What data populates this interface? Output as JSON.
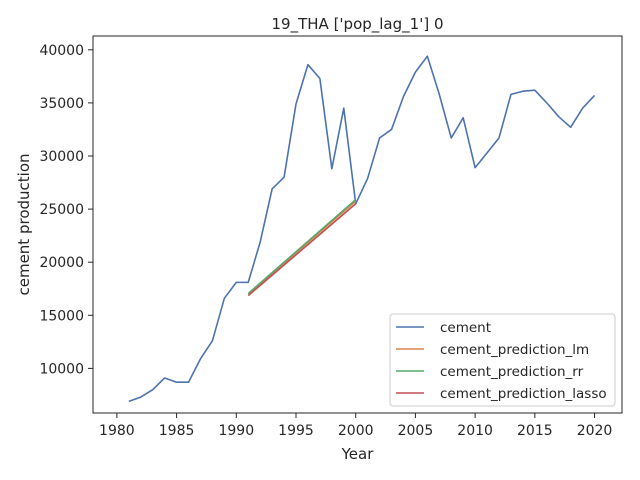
{
  "chart_data": {
    "type": "line",
    "title": "19_THA ['pop_lag_1'] 0",
    "xlabel": "Year",
    "ylabel": "cement production",
    "xlim": [
      1978,
      2022.3
    ],
    "ylim": [
      5800,
      41300
    ],
    "xticks": [
      1980,
      1985,
      1990,
      1995,
      2000,
      2005,
      2010,
      2015,
      2020
    ],
    "yticks": [
      10000,
      15000,
      20000,
      25000,
      30000,
      35000,
      40000
    ],
    "grid": false,
    "legend_position": "lower-right",
    "series": [
      {
        "name": "cement",
        "color": "#4c72b0",
        "x": [
          1981,
          1982,
          1983,
          1984,
          1985,
          1986,
          1987,
          1988,
          1989,
          1990,
          1991,
          1992,
          1993,
          1994,
          1995,
          1996,
          1997,
          1998,
          1999,
          2000,
          2001,
          2002,
          2003,
          2004,
          2005,
          2006,
          2007,
          2008,
          2009,
          2010,
          2011,
          2012,
          2013,
          2014,
          2015,
          2016,
          2017,
          2018,
          2019,
          2020
        ],
        "values": [
          6900,
          7300,
          8000,
          9100,
          8700,
          8700,
          10900,
          12600,
          16600,
          18100,
          18100,
          21900,
          26900,
          28000,
          34900,
          38600,
          37300,
          28800,
          34500,
          25500,
          27900,
          31700,
          32500,
          35600,
          37900,
          39400,
          35800,
          31700,
          33600,
          28900,
          30300,
          31700,
          35800,
          36100,
          36200,
          35000,
          33700,
          32700,
          34500,
          35700
        ]
      },
      {
        "name": "cement_prediction_lm",
        "color": "#dd8452",
        "x": [
          1991,
          2000
        ],
        "values": [
          17000,
          25750
        ]
      },
      {
        "name": "cement_prediction_rr",
        "color": "#55a868",
        "x": [
          1991,
          2000
        ],
        "values": [
          17050,
          25900
        ]
      },
      {
        "name": "cement_prediction_lasso",
        "color": "#c44e52",
        "x": [
          1991,
          2000
        ],
        "values": [
          16850,
          25500
        ]
      }
    ]
  }
}
